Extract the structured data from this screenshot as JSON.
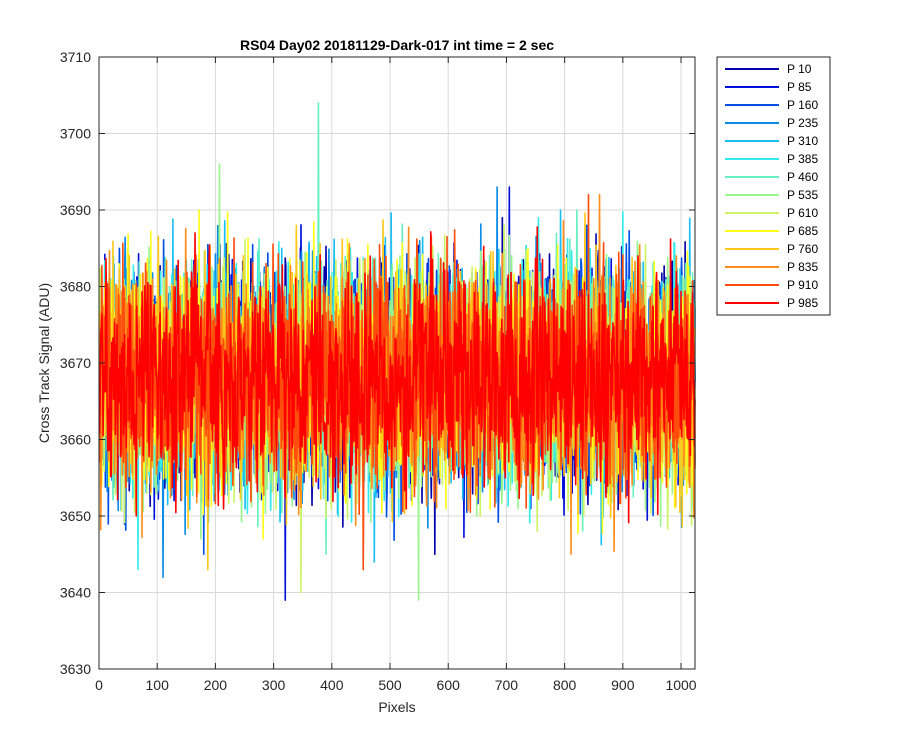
{
  "chart_data": {
    "type": "line",
    "title": "RS04 Day02 20181129-Dark-017 int time = 2 sec",
    "xlabel": "Pixels",
    "ylabel": "Cross Track Signal (ADU)",
    "xlim": [
      0,
      1024
    ],
    "ylim": [
      3630,
      3710
    ],
    "xticks": [
      "0",
      "100",
      "200",
      "300",
      "400",
      "500",
      "600",
      "700",
      "800",
      "900",
      "1000"
    ],
    "yticks": [
      "3630",
      "3640",
      "3650",
      "3660",
      "3670",
      "3680",
      "3690",
      "3700",
      "3710"
    ],
    "grid": true,
    "legend_position": "outside-right",
    "series_mean": 3668,
    "series_noise_range": [
      3648,
      3688
    ],
    "series": [
      {
        "name": "P 10",
        "color": "#0000a8",
        "min": 3645,
        "max": 3689
      },
      {
        "name": "P 85",
        "color": "#0010d9",
        "min": 3639,
        "max": 3693
      },
      {
        "name": "P 160",
        "color": "#0050e6",
        "min": 3645,
        "max": 3688
      },
      {
        "name": "P 235",
        "color": "#0a8ce6",
        "min": 3642,
        "max": 3693
      },
      {
        "name": "P 310",
        "color": "#19bff2",
        "min": 3644,
        "max": 3690
      },
      {
        "name": "P 385",
        "color": "#33ebeb",
        "min": 3643,
        "max": 3689
      },
      {
        "name": "P 460",
        "color": "#66f0c2",
        "min": 3645,
        "max": 3704
      },
      {
        "name": "P 535",
        "color": "#99f58c",
        "min": 3639,
        "max": 3696
      },
      {
        "name": "P 610",
        "color": "#ccf566",
        "min": 3640,
        "max": 3688
      },
      {
        "name": "P 685",
        "color": "#ffff1a",
        "min": 3647,
        "max": 3690
      },
      {
        "name": "P 760",
        "color": "#ffc71a",
        "min": 3643,
        "max": 3688
      },
      {
        "name": "P 835",
        "color": "#ff8c1a",
        "min": 3645,
        "max": 3692
      },
      {
        "name": "P 910",
        "color": "#ff4d0d",
        "min": 3643,
        "max": 3692
      },
      {
        "name": "P 985",
        "color": "#ff0000",
        "min": 3650,
        "max": 3687
      }
    ]
  }
}
